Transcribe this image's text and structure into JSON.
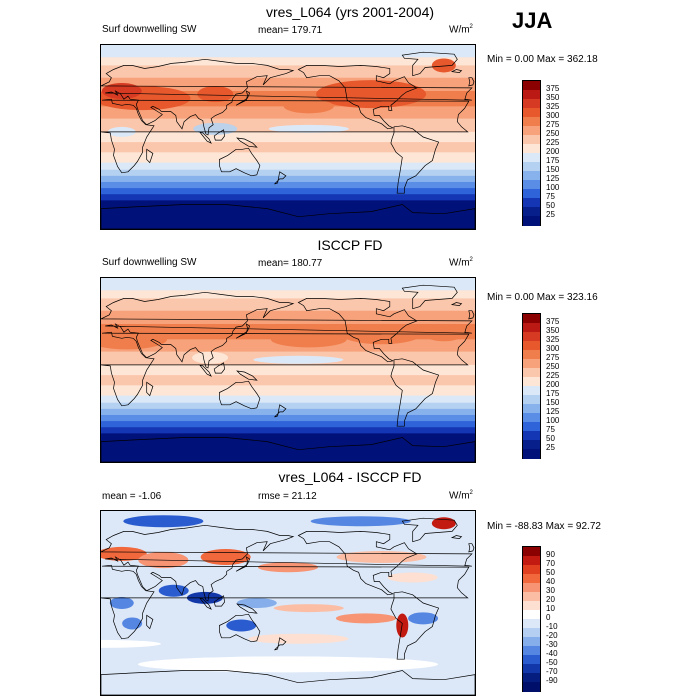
{
  "season": "JJA",
  "panels": [
    {
      "title": "vres_L064 (yrs 2001-2004)",
      "left_label": "Surf downwelling SW",
      "center_label": "mean= 179.71",
      "units": "W/m",
      "units_sup": "2",
      "min_max": "Min =   0.00 Max = 362.18",
      "field": "absolute",
      "colorbar_labels": [
        "375",
        "350",
        "325",
        "300",
        "275",
        "250",
        "225",
        "200",
        "175",
        "150",
        "125",
        "100",
        "75",
        "50",
        "25"
      ]
    },
    {
      "title": "ISCCP FD",
      "left_label": "Surf downwelling SW",
      "center_label": "mean= 180.77",
      "units": "W/m",
      "units_sup": "2",
      "min_max": "Min =   0.00 Max = 323.16",
      "field": "absolute",
      "colorbar_labels": [
        "375",
        "350",
        "325",
        "300",
        "275",
        "250",
        "225",
        "200",
        "175",
        "150",
        "125",
        "100",
        "75",
        "50",
        "25"
      ]
    },
    {
      "title": "vres_L064 - ISCCP FD",
      "left_label": "mean =  -1.06",
      "center_label": "rmse =  21.12",
      "units": "W/m",
      "units_sup": "2",
      "min_max": "Min = -88.83 Max =  92.72",
      "field": "difference",
      "colorbar_labels": [
        "90",
        "70",
        "50",
        "40",
        "30",
        "20",
        "10",
        "0",
        "-10",
        "-20",
        "-30",
        "-40",
        "-50",
        "-70",
        "-90"
      ]
    }
  ],
  "colors": {
    "absolute_scale": [
      "#8b0000",
      "#bb1a14",
      "#d73a22",
      "#e8582d",
      "#f07e4c",
      "#f7a27a",
      "#fbc7ac",
      "#fde6d6",
      "#dbe8f7",
      "#b5d1f1",
      "#88b2ec",
      "#5a8de6",
      "#2f63d9",
      "#1436b4",
      "#061f8a",
      "#00117a"
    ],
    "difference_scale": [
      "#8b0000",
      "#c21a10",
      "#e0401f",
      "#f0683c",
      "#f79473",
      "#fbbea5",
      "#fde0d1",
      "#ffffff",
      "#dce8f8",
      "#b4cff2",
      "#86aeeb",
      "#5586e2",
      "#2b5ccf",
      "#1237a8",
      "#041d7e",
      "#000f6a"
    ]
  }
}
